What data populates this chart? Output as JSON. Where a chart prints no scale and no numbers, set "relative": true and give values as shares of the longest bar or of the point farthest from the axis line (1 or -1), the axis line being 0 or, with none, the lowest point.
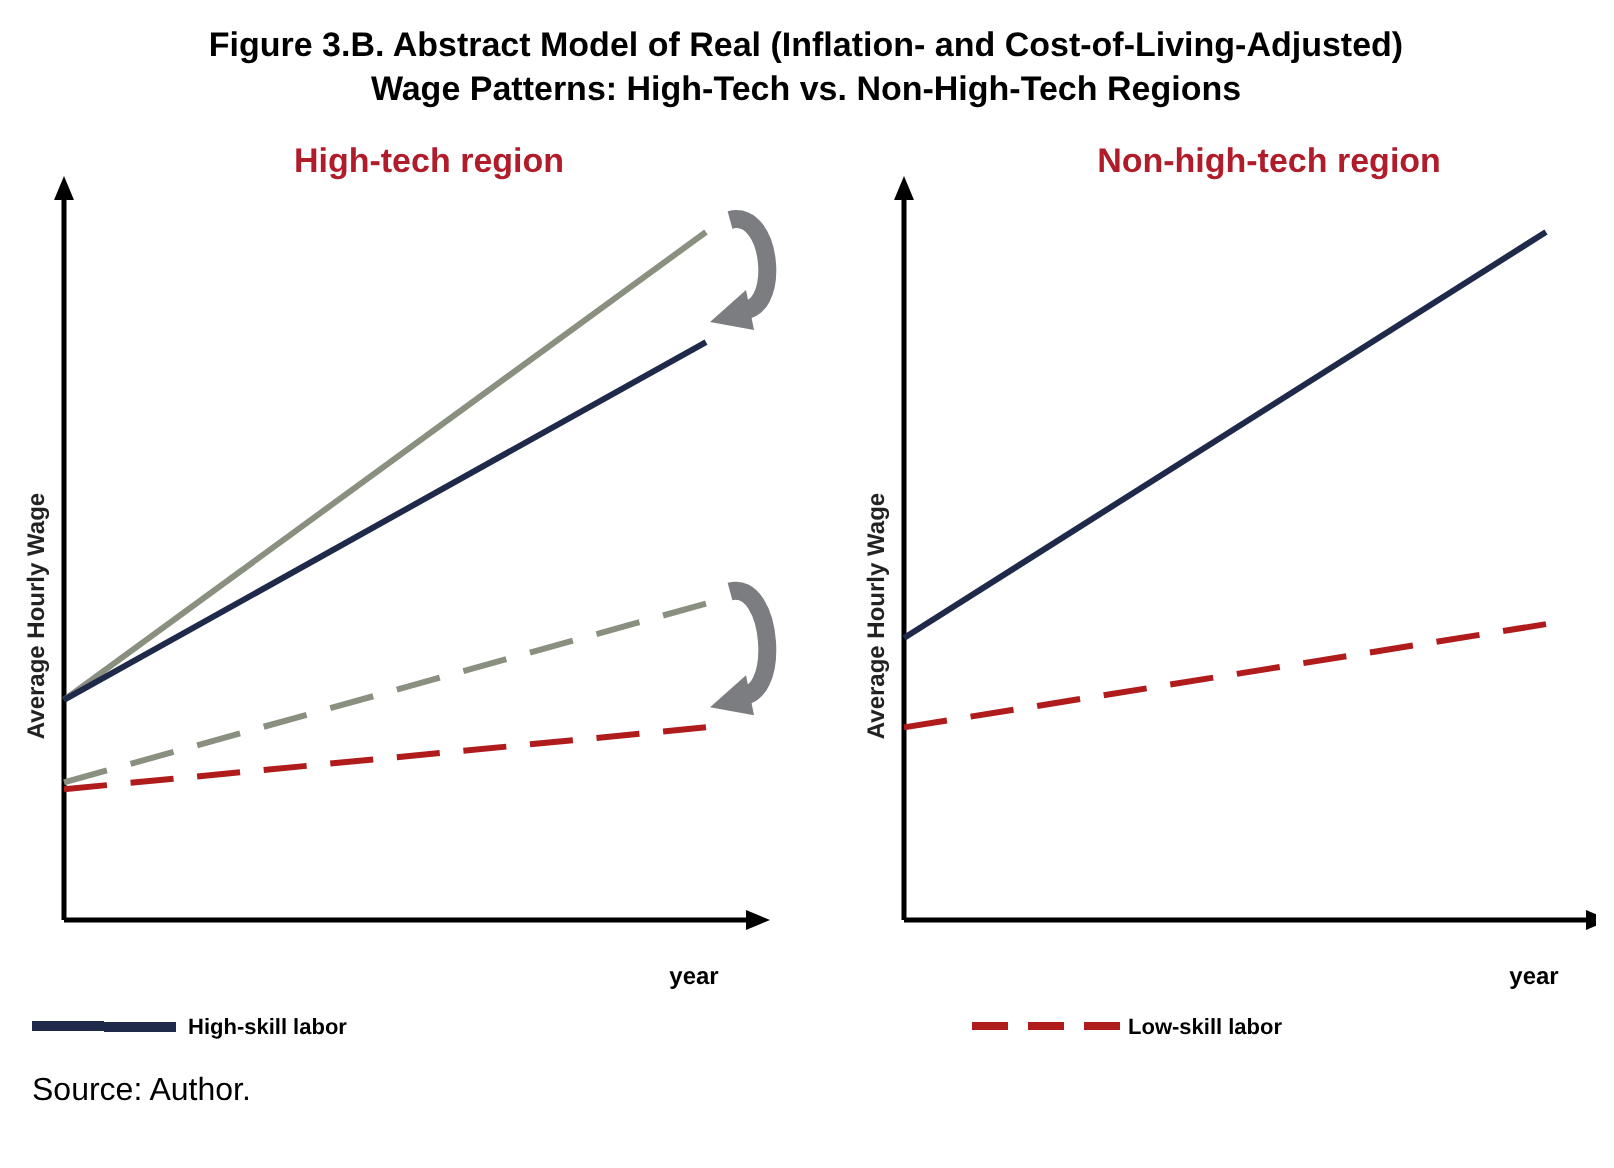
{
  "chart_data": [
    {
      "type": "line",
      "title": "Figure 3.B.   Abstract Model of Real (Inflation- and Cost-of-Living-Adjusted) Wage Patterns: High-Tech vs. Non-High-Tech Regions",
      "subtitle": "High-tech region",
      "xlabel": "year",
      "ylabel": "Average Hourly Wage",
      "relative": true,
      "categories": [
        null,
        null
      ],
      "legend": "bottom",
      "annotations": [
        "Source:  Author."
      ],
      "series": [
        {
          "color": "#8a9080",
          "values": [
            0.32,
            1
          ],
          "line_style": "solid"
        },
        {
          "name": "High-skill labor",
          "color": "#1f2a4a",
          "values": [
            0.32,
            0.84
          ],
          "line_style": "solid"
        },
        {
          "color": "#8a9080",
          "values": [
            0.2,
            0.46
          ],
          "line_style": "dashed"
        },
        {
          "name": "Low-skill labor",
          "color": "#b01c1c",
          "values": [
            0.19,
            0.28
          ],
          "line_style": "dashed"
        }
      ]
    },
    {
      "type": "line",
      "subtitle": "Non-high-tech region",
      "xlabel": "year",
      "ylabel": "Average Hourly Wage",
      "relative": true,
      "categories": [
        null,
        null
      ],
      "series": [
        {
          "color": "#1f2a4a",
          "values": [
            0.41,
            1
          ],
          "line_style": "solid"
        },
        {
          "color": "#b01c1c",
          "values": [
            0.28,
            0.43
          ],
          "line_style": "dashed"
        }
      ]
    }
  ]
}
